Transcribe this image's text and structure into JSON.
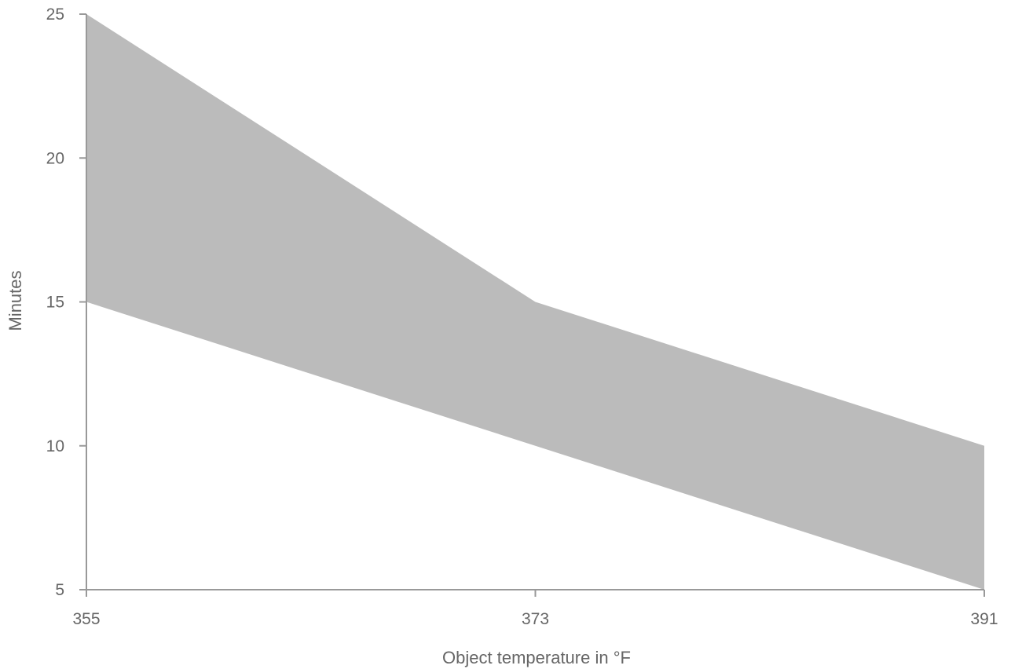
{
  "chart_data": {
    "type": "area",
    "title": "",
    "xlabel": "Object temperature in °F",
    "ylabel": "Minutes",
    "x": [
      355,
      373,
      391
    ],
    "series": [
      {
        "role": "upper",
        "values": [
          25,
          15,
          10
        ]
      },
      {
        "role": "lower",
        "values": [
          15,
          10,
          5
        ]
      }
    ],
    "xlim": [
      355,
      391
    ],
    "ylim": [
      5,
      25
    ],
    "x_ticks": [
      "355",
      "373",
      "391"
    ],
    "y_ticks": [
      "5",
      "10",
      "15",
      "20",
      "25"
    ],
    "grid": false,
    "legend": "none",
    "colors": {
      "band": "#bbbbbb",
      "axis": "#999999",
      "text": "#666666"
    }
  }
}
